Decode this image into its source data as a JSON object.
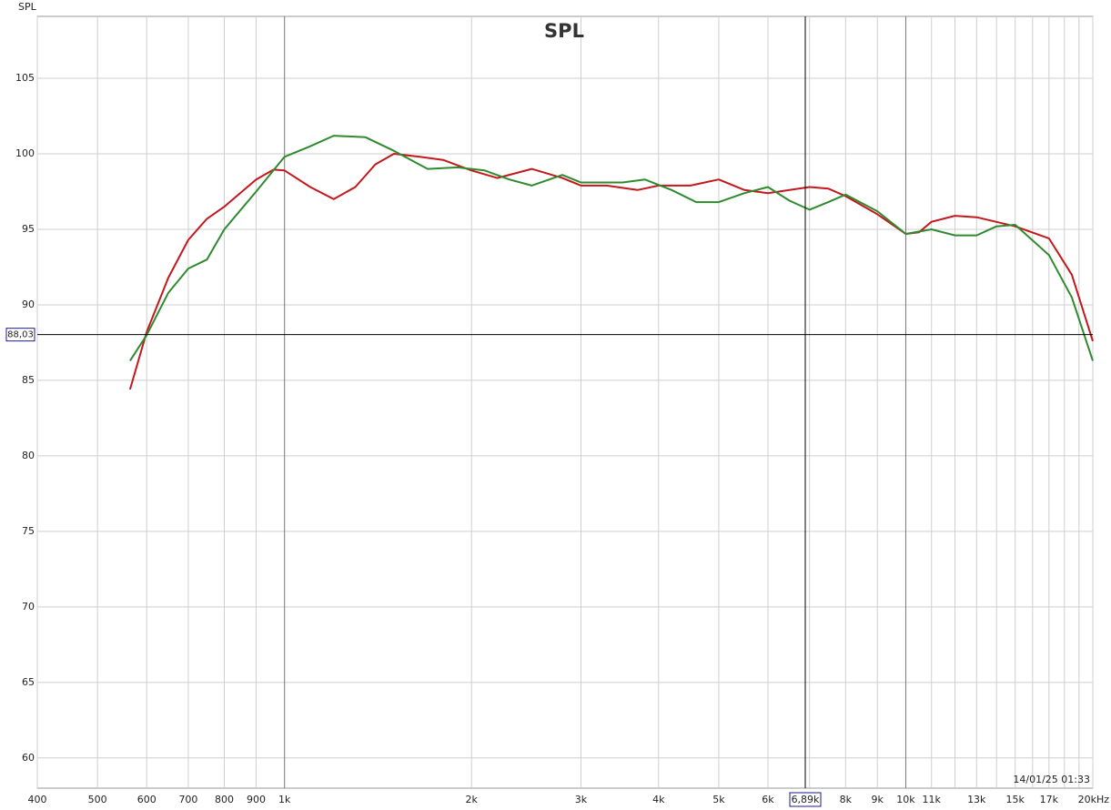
{
  "chart_data": {
    "type": "line",
    "title": "SPL",
    "y_label": "SPL",
    "timestamp": "14/01/25 01:33",
    "xscale": "log",
    "xlim": [
      400,
      20000
    ],
    "ylim": [
      58,
      109.1
    ],
    "xticks": [
      {
        "value": 400,
        "label": "400"
      },
      {
        "value": 500,
        "label": "500"
      },
      {
        "value": 600,
        "label": "600"
      },
      {
        "value": 700,
        "label": "700"
      },
      {
        "value": 800,
        "label": "800"
      },
      {
        "value": 900,
        "label": "900"
      },
      {
        "value": 1000,
        "label": "1k"
      },
      {
        "value": 2000,
        "label": "2k"
      },
      {
        "value": 3000,
        "label": "3k"
      },
      {
        "value": 4000,
        "label": "4k"
      },
      {
        "value": 5000,
        "label": "5k"
      },
      {
        "value": 6000,
        "label": "6k"
      },
      {
        "value": 8000,
        "label": "8k"
      },
      {
        "value": 9000,
        "label": "9k"
      },
      {
        "value": 10000,
        "label": "10k"
      },
      {
        "value": 11000,
        "label": "11k"
      },
      {
        "value": 13000,
        "label": "13k"
      },
      {
        "value": 15000,
        "label": "15k"
      },
      {
        "value": 17000,
        "label": "17k"
      },
      {
        "value": 20000,
        "label": "20kHz"
      }
    ],
    "x_unlabeled_grid": [
      7000,
      12000,
      14000,
      16000,
      18000,
      19000
    ],
    "yticks": [
      60,
      65,
      70,
      75,
      80,
      85,
      90,
      95,
      100,
      105
    ],
    "grid": true,
    "cursor": {
      "x": 6890,
      "x_label": "6,89k",
      "y": 88.03,
      "y_label": "88,03"
    },
    "series": [
      {
        "name": "Red",
        "color": "#c3181c",
        "x": [
          564,
          600,
          650,
          700,
          750,
          800,
          900,
          960,
          1000,
          1100,
          1200,
          1300,
          1400,
          1500,
          1650,
          1800,
          2000,
          2200,
          2500,
          2800,
          3000,
          3300,
          3700,
          4000,
          4500,
          5000,
          5500,
          6000,
          6500,
          7000,
          7500,
          8000,
          9000,
          10000,
          10500,
          11000,
          12000,
          13000,
          15000,
          17000,
          18500,
          20000
        ],
        "values": [
          84.4,
          88.2,
          91.8,
          94.3,
          95.7,
          96.5,
          98.3,
          98.95,
          98.9,
          97.8,
          97.0,
          97.8,
          99.3,
          100.0,
          99.8,
          99.6,
          98.9,
          98.4,
          99.0,
          98.4,
          97.9,
          97.9,
          97.6,
          97.9,
          97.9,
          98.3,
          97.6,
          97.4,
          97.6,
          97.8,
          97.7,
          97.2,
          96.0,
          94.7,
          94.8,
          95.5,
          95.9,
          95.8,
          95.2,
          94.4,
          92.0,
          87.6
        ]
      },
      {
        "name": "Green",
        "color": "#2f8a2f",
        "x": [
          564,
          600,
          650,
          700,
          750,
          800,
          900,
          1000,
          1100,
          1200,
          1350,
          1500,
          1700,
          1900,
          2100,
          2300,
          2500,
          2800,
          3000,
          3500,
          3800,
          4200,
          4600,
          5000,
          5500,
          6000,
          6500,
          7000,
          7500,
          8000,
          9000,
          10000,
          11000,
          12000,
          13000,
          14000,
          15000,
          17000,
          18500,
          20000
        ],
        "values": [
          86.3,
          88.0,
          90.8,
          92.4,
          93.0,
          95.0,
          97.5,
          99.8,
          100.5,
          101.2,
          101.1,
          100.2,
          99.0,
          99.1,
          98.9,
          98.3,
          97.9,
          98.6,
          98.1,
          98.1,
          98.3,
          97.6,
          96.8,
          96.8,
          97.4,
          97.8,
          96.9,
          96.3,
          96.8,
          97.3,
          96.2,
          94.7,
          95.0,
          94.6,
          94.6,
          95.2,
          95.3,
          93.3,
          90.5,
          86.3
        ]
      }
    ]
  }
}
